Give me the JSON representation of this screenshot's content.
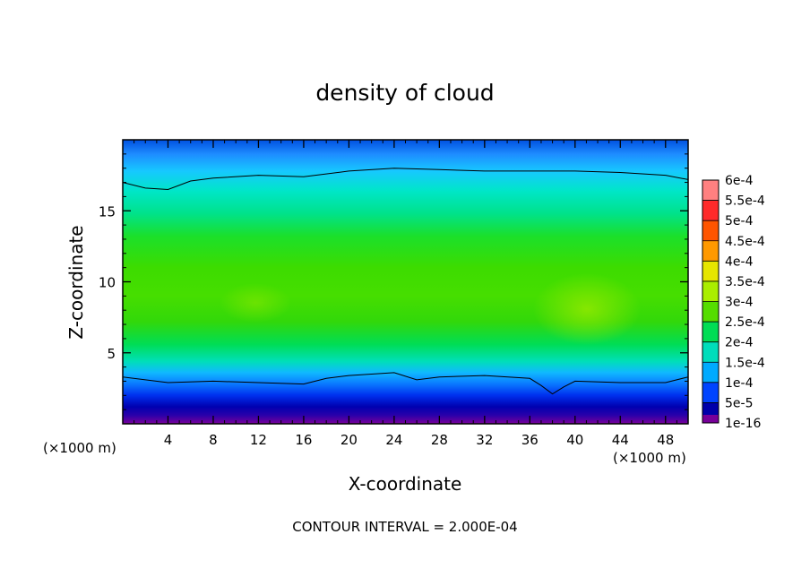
{
  "chart_data": {
    "type": "contour",
    "title": "density of cloud",
    "xlabel": "X-coordinate",
    "ylabel": "Z-coordinate",
    "x_unit_left": "(×1000 m)",
    "x_unit_right": "(×1000 m)",
    "footer": "CONTOUR INTERVAL = 2.000E-04",
    "xlim": [
      0,
      50
    ],
    "ylim": [
      0,
      20
    ],
    "x_ticks": [
      "4",
      "8",
      "12",
      "16",
      "20",
      "24",
      "28",
      "32",
      "36",
      "40",
      "44",
      "48"
    ],
    "x_tick_values": [
      4,
      8,
      12,
      16,
      20,
      24,
      28,
      32,
      36,
      40,
      44,
      48
    ],
    "y_ticks": [
      "5",
      "10",
      "15"
    ],
    "y_tick_values": [
      5,
      10,
      15
    ],
    "colorbar": {
      "labels": [
        "6e-4",
        "5.5e-4",
        "5e-4",
        "4.5e-4",
        "4e-4",
        "3.5e-4",
        "3e-4",
        "2.5e-4",
        "2e-4",
        "1.5e-4",
        "1e-4",
        "5e-5",
        "1e-16"
      ],
      "values": [
        0.0006,
        0.00055,
        0.0005,
        0.00045,
        0.0004,
        0.00035,
        0.0003,
        0.00025,
        0.0002,
        0.00015,
        0.0001,
        5e-05,
        1e-16
      ],
      "colors": [
        "#ff8080",
        "#ff2a2a",
        "#ff5500",
        "#ff9900",
        "#e6e600",
        "#aaee00",
        "#55dd00",
        "#00dd55",
        "#00ddbb",
        "#00aaff",
        "#0044ff",
        "#0000aa",
        "#770099"
      ]
    },
    "contour_levels": [
      0.0002
    ],
    "contour_lines": [
      {
        "level": 0.0002,
        "x": [
          0,
          2,
          4,
          6,
          8,
          12,
          16,
          20,
          24,
          28,
          32,
          36,
          40,
          44,
          48,
          50
        ],
        "z": [
          17.0,
          16.6,
          16.5,
          17.1,
          17.3,
          17.5,
          17.4,
          17.8,
          18.0,
          17.9,
          17.8,
          17.8,
          17.8,
          17.7,
          17.5,
          17.2
        ]
      },
      {
        "level": 0.0002,
        "x": [
          0,
          4,
          8,
          12,
          16,
          18,
          20,
          24,
          26,
          28,
          32,
          36,
          37,
          38,
          39,
          40,
          44,
          48,
          50
        ],
        "z": [
          3.3,
          2.9,
          3.0,
          2.9,
          2.8,
          3.2,
          3.4,
          3.6,
          3.1,
          3.3,
          3.4,
          3.2,
          2.7,
          2.1,
          2.6,
          3.0,
          2.9,
          2.9,
          3.3
        ]
      }
    ]
  }
}
